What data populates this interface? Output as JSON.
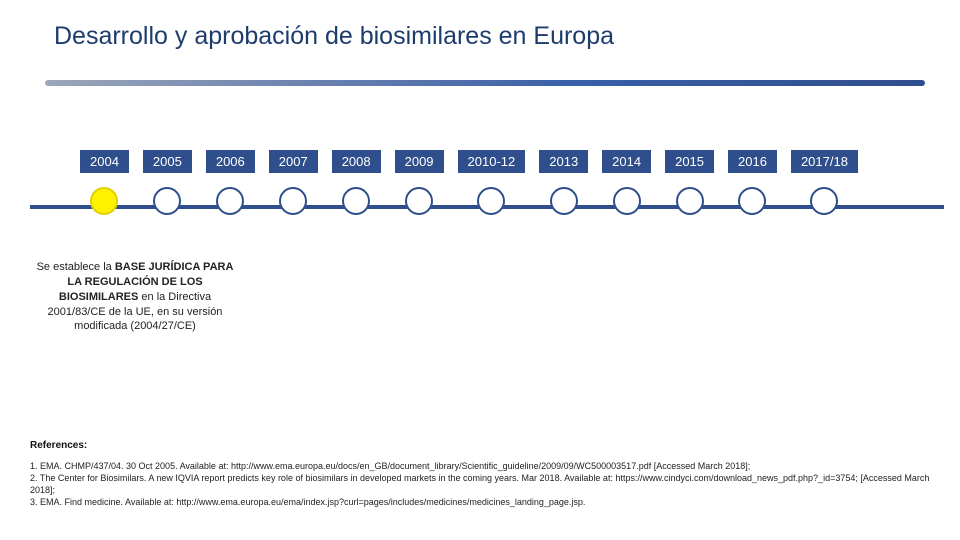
{
  "title": "Desarrollo y aprobación de biosimilares en Europa",
  "title_color": "#1d3c6e",
  "title_fontsize": 25,
  "title_line_gradient": [
    "#9ca6b8",
    "#3a5fa8",
    "#2f4e8c"
  ],
  "axis_color": "#2f4e8c",
  "timeline": {
    "items": [
      {
        "label": "2004",
        "box_color": "#2f4e8c",
        "dot_fill": "#fff200",
        "dot_border": "#e0d000"
      },
      {
        "label": "2005",
        "box_color": "#2f4e8c",
        "dot_fill": "#ffffff",
        "dot_border": "#2f4e8c"
      },
      {
        "label": "2006",
        "box_color": "#2f4e8c",
        "dot_fill": "#ffffff",
        "dot_border": "#2f4e8c"
      },
      {
        "label": "2007",
        "box_color": "#2f4e8c",
        "dot_fill": "#ffffff",
        "dot_border": "#2f4e8c"
      },
      {
        "label": "2008",
        "box_color": "#2f4e8c",
        "dot_fill": "#ffffff",
        "dot_border": "#2f4e8c"
      },
      {
        "label": "2009",
        "box_color": "#2f4e8c",
        "dot_fill": "#ffffff",
        "dot_border": "#2f4e8c"
      },
      {
        "label": "2010-12",
        "box_color": "#2f4e8c",
        "dot_fill": "#ffffff",
        "dot_border": "#2f4e8c"
      },
      {
        "label": "2013",
        "box_color": "#2f4e8c",
        "dot_fill": "#ffffff",
        "dot_border": "#2f4e8c"
      },
      {
        "label": "2014",
        "box_color": "#2f4e8c",
        "dot_fill": "#ffffff",
        "dot_border": "#2f4e8c"
      },
      {
        "label": "2015",
        "box_color": "#2f4e8c",
        "dot_fill": "#ffffff",
        "dot_border": "#2f4e8c"
      },
      {
        "label": "2016",
        "box_color": "#2f4e8c",
        "dot_fill": "#ffffff",
        "dot_border": "#2f4e8c"
      },
      {
        "label": "2017/18",
        "box_color": "#2f4e8c",
        "dot_fill": "#ffffff",
        "dot_border": "#2f4e8c"
      }
    ],
    "dot_size": 28,
    "dot_border_width": 2,
    "year_box_fontsize": 13,
    "year_box_text_color": "#ffffff"
  },
  "callout": {
    "pre": "Se establece la ",
    "bold1": "BASE JURÍDICA PARA LA REGULACIÓN DE LOS BIOSIMILARES",
    "mid": " en la Directiva 2001/83/CE de la UE, en su versión modificada (2004/27/CE)",
    "fontsize": 11
  },
  "references": {
    "heading": "References:",
    "lines": [
      "1. EMA. CHMP/437/04. 30 Oct 2005. Available at: http://www.ema.europa.eu/docs/en_GB/document_library/Scientific_guideline/2009/09/WC500003517.pdf [Accessed March 2018];",
      "2. The Center for Biosimilars. A new IQVIA report predicts key role of biosimilars in developed markets in the coming years. Mar 2018. Available at: https://www.cindyci.com/download_news_pdf.php?_id=3754; [Accessed March 2018];",
      "3. EMA. Find medicine. Available at: http://www.ema.europa.eu/ema/index.jsp?curl=pages/includes/medicines/medicines_landing_page.jsp."
    ],
    "fontsize": 9
  },
  "background_color": "#ffffff"
}
